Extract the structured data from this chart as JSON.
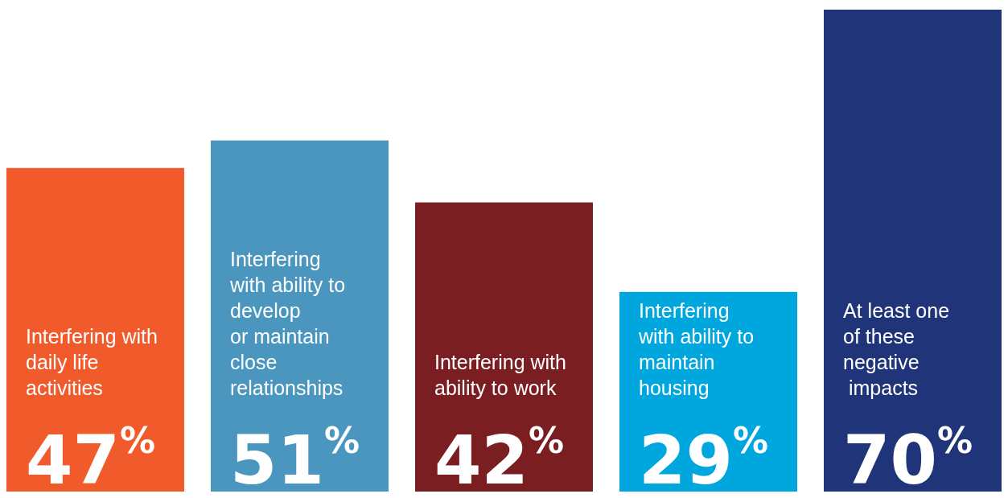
{
  "chart_data": {
    "type": "bar",
    "categories": [
      "Interfering with\ndaily life\nactivities",
      "Interfering\nwith ability to\ndevelop\nor maintain\nclose\nrelationships",
      "Interfering with\nability to work",
      "Interfering\nwith ability to\nmaintain\nhousing",
      "At least one\nof these\nnegative\n impacts"
    ],
    "values": [
      47,
      51,
      42,
      29,
      70
    ],
    "colors": [
      "#f15a2b",
      "#4b96be",
      "#7b1e22",
      "#00a6de",
      "#1f3479"
    ],
    "value_labels": [
      "47%",
      "51%",
      "42%",
      "29%",
      "70%"
    ]
  }
}
